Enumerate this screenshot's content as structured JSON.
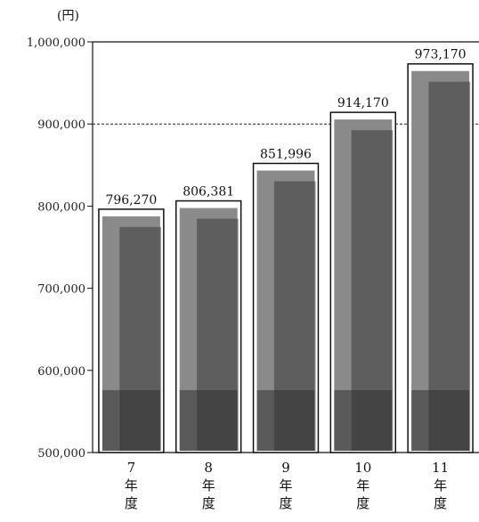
{
  "chart_data": {
    "type": "bar",
    "unit_label": "(円)",
    "categories": [
      [
        "7",
        "年",
        "度"
      ],
      [
        "8",
        "年",
        "度"
      ],
      [
        "9",
        "年",
        "度"
      ],
      [
        "10",
        "年",
        "度"
      ],
      [
        "11",
        "年",
        "度"
      ]
    ],
    "values": [
      796270,
      806381,
      851996,
      914170,
      973170
    ],
    "value_labels": [
      "796,270",
      "806,381",
      "851,996",
      "914,170",
      "973,170"
    ],
    "ylim": [
      500000,
      1000000
    ],
    "yticks": [
      500000,
      600000,
      700000,
      800000,
      900000,
      1000000
    ],
    "ytick_labels": [
      "500,000",
      "600,000",
      "700,000",
      "800,000",
      "900,000",
      "1,000,000"
    ],
    "reference_line": 900000,
    "grid": false,
    "colors": {
      "bar_fill": "#8a8a8a",
      "bar_dark": "#3a3a3a",
      "frame": "#111111"
    }
  }
}
